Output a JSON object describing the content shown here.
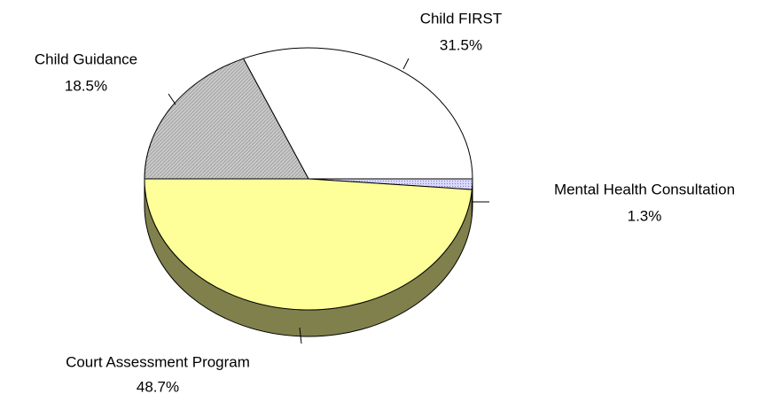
{
  "chart_data": {
    "type": "pie",
    "categories": [
      "Child FIRST",
      "Mental Health Consultation",
      "Court Assessment Program",
      "Child Guidance"
    ],
    "values": [
      31.5,
      1.3,
      48.7,
      18.5
    ],
    "value_labels": [
      "31.5%",
      "1.3%",
      "48.7%",
      "18.5%"
    ],
    "colors": [
      "#ffffff",
      "#ccccff",
      "#ffff99",
      "#c0c0c0"
    ]
  }
}
